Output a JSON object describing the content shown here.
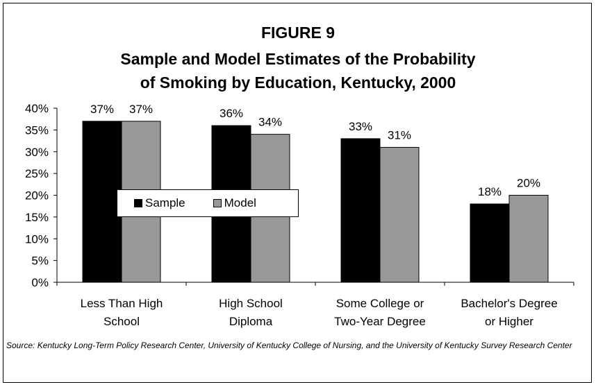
{
  "chart_data": {
    "type": "bar",
    "title": "FIGURE 9",
    "subtitle_lines": [
      "Sample and Model Estimates of the Probability",
      "of Smoking by Education, Kentucky, 2000"
    ],
    "categories": [
      [
        "Less Than High",
        "School"
      ],
      [
        "High School",
        "Diploma"
      ],
      [
        "Some College or",
        "Two-Year Degree"
      ],
      [
        "Bachelor's Degree",
        "or Higher"
      ]
    ],
    "series": [
      {
        "name": "Sample",
        "values": [
          37,
          36,
          33,
          18
        ],
        "labels": [
          "37%",
          "36%",
          "33%",
          "18%"
        ],
        "color": "#000000"
      },
      {
        "name": "Model",
        "values": [
          37,
          34,
          31,
          20
        ],
        "labels": [
          "37%",
          "34%",
          "31%",
          "20%"
        ],
        "color": "#999999"
      }
    ],
    "ylim": [
      0,
      40
    ],
    "yticks": [
      "0%",
      "5%",
      "10%",
      "15%",
      "20%",
      "25%",
      "30%",
      "35%",
      "40%"
    ],
    "grid": false,
    "legend_position": "center-left"
  },
  "source": "Source:  Kentucky Long-Term Policy Research Center, University of Kentucky College of Nursing, and the University of Kentucky Survey Research Center"
}
